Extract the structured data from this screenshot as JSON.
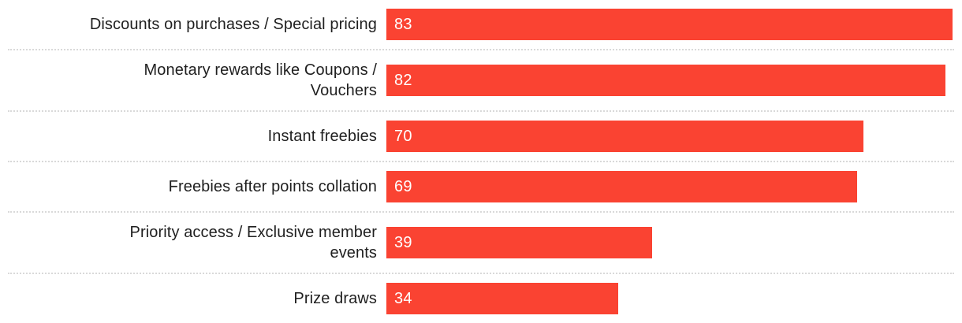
{
  "chart_data": {
    "type": "bar",
    "orientation": "horizontal",
    "title": "",
    "xlabel": "",
    "ylabel": "",
    "xlim": [
      0,
      84.4
    ],
    "grid": false,
    "legend": false,
    "categories": [
      "Discounts on purchases / Special pricing",
      "Monetary rewards like Coupons /\nVouchers",
      "Instant freebies",
      "Freebies after points collation",
      "Priority access / Exclusive member\nevents",
      "Prize draws"
    ],
    "values": [
      83,
      82,
      70,
      69,
      39,
      34
    ],
    "value_labels": [
      "83",
      "82",
      "70",
      "69",
      "39",
      "34"
    ],
    "bar_color": "#fa4332",
    "value_label_color": "#ffffff",
    "category_label_color": "#1f1f1f",
    "separator_color": "#d9d9d9",
    "row_height_single_line": 62,
    "row_height_double_line": 76
  }
}
